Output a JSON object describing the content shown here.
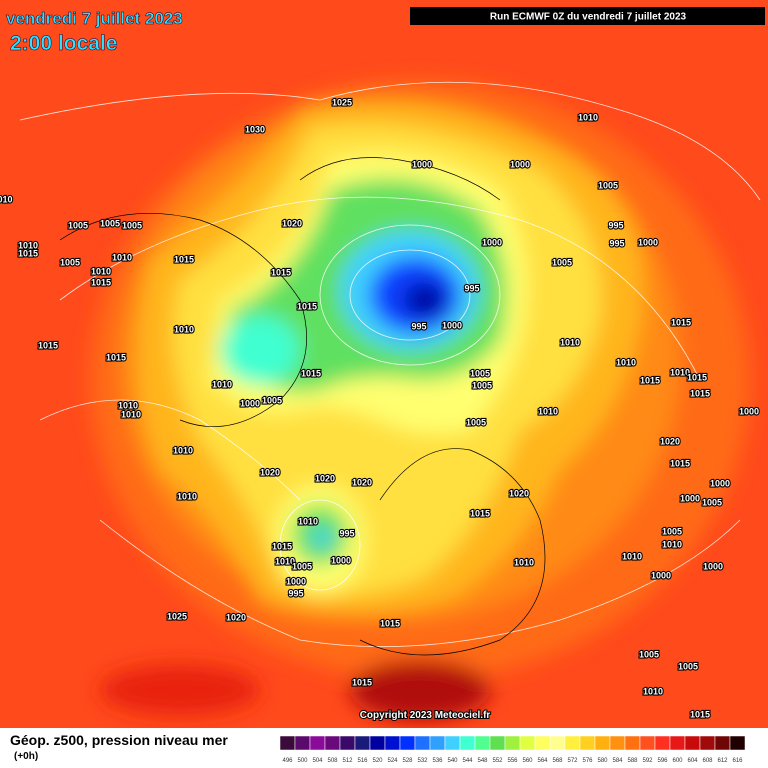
{
  "header": {
    "title": "vendredi 7 juillet 2023",
    "time": "2:00 locale",
    "run": "Run ECMWF 0Z du vendredi 7 juillet 2023"
  },
  "isobar_labels": [
    "1025",
    "1030",
    "1010",
    "1000",
    "1000",
    "1005",
    "010",
    "1020",
    "1005",
    "1005",
    "1005",
    "995",
    "1010",
    "1015",
    "1005",
    "1010",
    "1000",
    "995",
    "1000",
    "1015",
    "1005",
    "1015",
    "1010",
    "1015",
    "995",
    "1015",
    "995",
    "1000",
    "1010",
    "1015",
    "1015",
    "1010",
    "1015",
    "1015",
    "1005",
    "1005",
    "1010",
    "1005",
    "1000",
    "1010",
    "1010",
    "1010",
    "1010",
    "1015",
    "1010",
    "1015",
    "1015",
    "1000",
    "1005",
    "1020",
    "1010",
    "1015",
    "1020",
    "1020",
    "1020",
    "1000",
    "1010",
    "1020",
    "1000",
    "1005",
    "1015",
    "1010",
    "995",
    "1005",
    "1010",
    "1015",
    "1000",
    "1010",
    "1005",
    "1010",
    "1010",
    "1000",
    "1000",
    "1000",
    "995",
    "1025",
    "1020",
    "1015",
    "1005",
    "1005",
    "1015",
    "1010",
    "1015"
  ],
  "copyright": "Copyright 2023 Meteociel.fr",
  "legend": {
    "title": "Géop. z500, pression niveau mer",
    "lead": "(+0h)",
    "labels": [
      "496",
      "500",
      "504",
      "508",
      "512",
      "516",
      "520",
      "524",
      "528",
      "532",
      "536",
      "540",
      "544",
      "548",
      "552",
      "556",
      "560",
      "564",
      "568",
      "572",
      "576",
      "580",
      "584",
      "588",
      "592",
      "596",
      "600",
      "604",
      "608",
      "612",
      "616"
    ],
    "colors": [
      "#3a0a3a",
      "#5a0a6a",
      "#8a0a9a",
      "#6a0a7a",
      "#3a0a6a",
      "#1a1a7a",
      "#0000a0",
      "#0010d0",
      "#0030ff",
      "#2070ff",
      "#30a0ff",
      "#40d0ff",
      "#40ffd0",
      "#50ff90",
      "#60e050",
      "#a0f040",
      "#e0ff40",
      "#ffff60",
      "#ffff90",
      "#fff040",
      "#ffd020",
      "#ffb010",
      "#ff9010",
      "#ff7010",
      "#ff5020",
      "#ff3020",
      "#e81818",
      "#c80a0a",
      "#a00a0a",
      "#700505",
      "#200000"
    ]
  }
}
